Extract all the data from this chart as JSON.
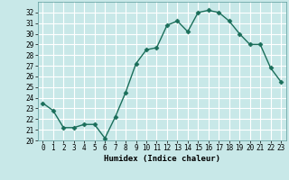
{
  "x": [
    0,
    1,
    2,
    3,
    4,
    5,
    6,
    7,
    8,
    9,
    10,
    11,
    12,
    13,
    14,
    15,
    16,
    17,
    18,
    19,
    20,
    21,
    22,
    23
  ],
  "y": [
    23.5,
    22.8,
    21.2,
    21.2,
    21.5,
    21.5,
    20.2,
    22.2,
    24.5,
    27.2,
    28.5,
    28.7,
    30.8,
    31.2,
    30.2,
    32.0,
    32.2,
    32.0,
    31.2,
    30.0,
    29.0,
    29.0,
    26.8,
    25.5
  ],
  "line_color": "#1a6e5a",
  "marker_color": "#1a6e5a",
  "bg_color": "#c8e8e8",
  "grid_color": "#ffffff",
  "xlabel": "Humidex (Indice chaleur)",
  "ylim": [
    20,
    33
  ],
  "xlim": [
    -0.5,
    23.5
  ],
  "yticks": [
    20,
    21,
    22,
    23,
    24,
    25,
    26,
    27,
    28,
    29,
    30,
    31,
    32
  ],
  "xticks": [
    0,
    1,
    2,
    3,
    4,
    5,
    6,
    7,
    8,
    9,
    10,
    11,
    12,
    13,
    14,
    15,
    16,
    17,
    18,
    19,
    20,
    21,
    22,
    23
  ],
  "xlabel_fontsize": 6.5,
  "tick_fontsize": 5.5,
  "linewidth": 1.0,
  "markersize": 2.5
}
